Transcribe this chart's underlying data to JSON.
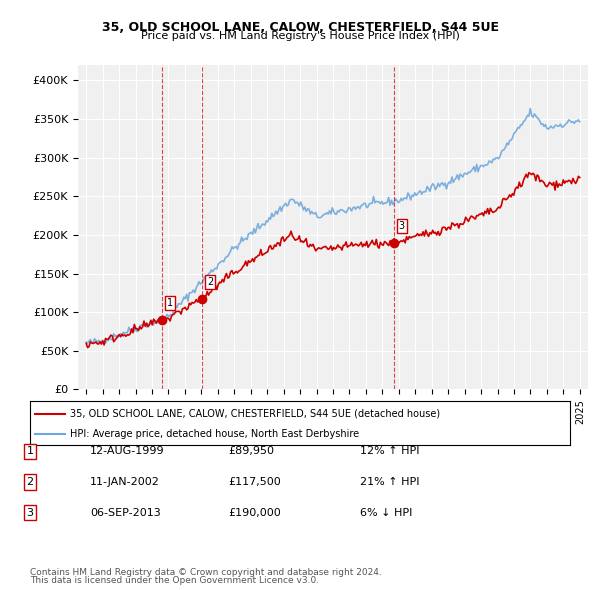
{
  "title": "35, OLD SCHOOL LANE, CALOW, CHESTERFIELD, S44 5UE",
  "subtitle": "Price paid vs. HM Land Registry's House Price Index (HPI)",
  "legend_line1": "35, OLD SCHOOL LANE, CALOW, CHESTERFIELD, S44 5UE (detached house)",
  "legend_line2": "HPI: Average price, detached house, North East Derbyshire",
  "footer1": "Contains HM Land Registry data © Crown copyright and database right 2024.",
  "footer2": "This data is licensed under the Open Government Licence v3.0.",
  "transactions": [
    {
      "num": 1,
      "date": "12-AUG-1999",
      "price": "£89,950",
      "hpi": "12% ↑ HPI"
    },
    {
      "num": 2,
      "date": "11-JAN-2002",
      "price": "£117,500",
      "hpi": "21% ↑ HPI"
    },
    {
      "num": 3,
      "date": "06-SEP-2013",
      "price": "£190,000",
      "hpi": "6% ↓ HPI"
    }
  ],
  "sale_points": [
    {
      "year": 1999.62,
      "value": 89950
    },
    {
      "year": 2002.04,
      "value": 117500
    },
    {
      "year": 2013.68,
      "value": 190000
    }
  ],
  "hpi_color": "#6fa8dc",
  "price_color": "#cc0000",
  "marker_color": "#cc0000",
  "dashed_color": "#cc0000",
  "ylim": [
    0,
    420000
  ],
  "xlim": [
    1994.5,
    2025.5
  ]
}
